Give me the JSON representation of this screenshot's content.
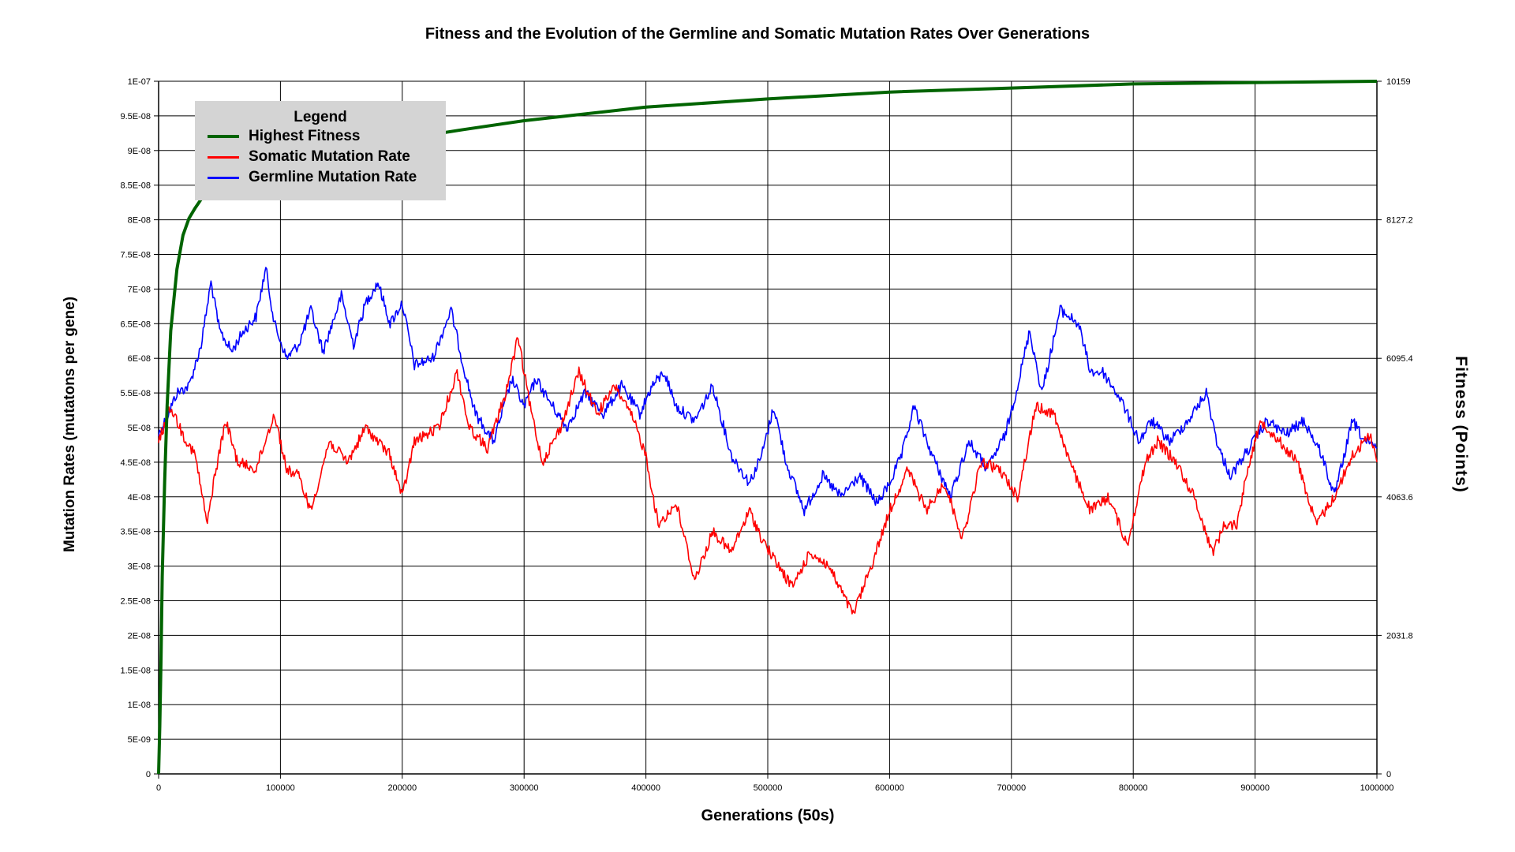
{
  "chart_data": {
    "type": "line",
    "title": "Fitness and the Evolution of the Germline and Somatic Mutation Rates Over Generations",
    "xlabel": "Generations (50s)",
    "ylabel_left": "Mutation Rates (mutatons per gene)",
    "ylabel_right": "Fitness (Points)",
    "xlim": [
      0,
      1000000
    ],
    "ylim_left": [
      0,
      1e-07
    ],
    "ylim_right": [
      0,
      10159
    ],
    "x_ticks": [
      "0",
      "100000",
      "200000",
      "300000",
      "400000",
      "500000",
      "600000",
      "700000",
      "800000",
      "900000",
      "1000000"
    ],
    "y_left_ticks": [
      "0",
      "5E-09",
      "1E-08",
      "1.5E-08",
      "2E-08",
      "2.5E-08",
      "3E-08",
      "3.5E-08",
      "4E-08",
      "4.5E-08",
      "5E-08",
      "5.5E-08",
      "6E-08",
      "6.5E-08",
      "7E-08",
      "7.5E-08",
      "8E-08",
      "8.5E-08",
      "9E-08",
      "9.5E-08",
      "1E-07"
    ],
    "y_right_ticks": [
      "0",
      "2031.8",
      "4063.6",
      "6095.4",
      "8127.2",
      "10159"
    ],
    "grid": true,
    "legend": {
      "title": "Legend",
      "position": "top-left"
    },
    "series": [
      {
        "name": "Highest Fitness",
        "axis": "right",
        "color": "#006400",
        "x": [
          0,
          1000,
          2000,
          3000,
          5000,
          7000,
          10000,
          15000,
          20000,
          25000,
          30000,
          35000,
          40000,
          50000,
          60000,
          80000,
          100000,
          150000,
          200000,
          250000,
          300000,
          400000,
          500000,
          600000,
          700000,
          800000,
          900000,
          1000000
        ],
        "y": [
          0,
          700,
          1700,
          2900,
          4300,
          5400,
          6500,
          7400,
          7900,
          8150,
          8300,
          8430,
          8500,
          8620,
          8720,
          8860,
          8950,
          9160,
          9310,
          9450,
          9580,
          9780,
          9900,
          10000,
          10060,
          10120,
          10140,
          10159
        ]
      },
      {
        "name": "Somatic Mutation Rate",
        "axis": "left",
        "color": "#ff0000",
        "x": [
          0,
          10000,
          20000,
          30000,
          40000,
          45000,
          55000,
          65000,
          80000,
          95000,
          105000,
          115000,
          125000,
          140000,
          155000,
          170000,
          190000,
          200000,
          210000,
          230000,
          245000,
          255000,
          270000,
          285000,
          295000,
          305000,
          315000,
          330000,
          345000,
          360000,
          375000,
          390000,
          400000,
          410000,
          425000,
          440000,
          455000,
          470000,
          485000,
          495000,
          505000,
          520000,
          535000,
          550000,
          570000,
          585000,
          600000,
          615000,
          630000,
          645000,
          660000,
          675000,
          690000,
          705000,
          720000,
          735000,
          750000,
          765000,
          780000,
          795000,
          810000,
          820000,
          835000,
          850000,
          865000,
          875000,
          885000,
          895000,
          905000,
          920000,
          935000,
          950000,
          965000,
          980000,
          995000,
          1000000
        ],
        "y": [
          4.8e-08,
          5.3e-08,
          4.9e-08,
          4.6e-08,
          3.6e-08,
          4.2e-08,
          5.1e-08,
          4.5e-08,
          4.4e-08,
          5.2e-08,
          4.4e-08,
          4.3e-08,
          3.8e-08,
          4.8e-08,
          4.5e-08,
          5e-08,
          4.6e-08,
          4e-08,
          4.8e-08,
          5e-08,
          5.8e-08,
          5e-08,
          4.7e-08,
          5.5e-08,
          6.3e-08,
          5.3e-08,
          4.5e-08,
          5e-08,
          5.8e-08,
          5.2e-08,
          5.6e-08,
          5.1e-08,
          4.6e-08,
          3.6e-08,
          3.9e-08,
          2.8e-08,
          3.5e-08,
          3.2e-08,
          3.8e-08,
          3.4e-08,
          3.1e-08,
          2.7e-08,
          3.2e-08,
          3e-08,
          2.3e-08,
          3e-08,
          3.8e-08,
          4.4e-08,
          3.8e-08,
          4.2e-08,
          3.4e-08,
          4.5e-08,
          4.4e-08,
          4e-08,
          5.3e-08,
          5.2e-08,
          4.4e-08,
          3.8e-08,
          4e-08,
          3.3e-08,
          4.5e-08,
          4.8e-08,
          4.5e-08,
          4e-08,
          3.2e-08,
          3.6e-08,
          3.6e-08,
          4.5e-08,
          5.1e-08,
          4.8e-08,
          4.5e-08,
          3.6e-08,
          4e-08,
          4.6e-08,
          4.9e-08,
          4.5e-08
        ]
      },
      {
        "name": "Germline Mutation Rate",
        "axis": "left",
        "color": "#0000ff",
        "x": [
          0,
          8000,
          15000,
          25000,
          35000,
          43000,
          50000,
          60000,
          70000,
          80000,
          88000,
          95000,
          105000,
          115000,
          125000,
          135000,
          150000,
          160000,
          170000,
          180000,
          190000,
          200000,
          210000,
          225000,
          240000,
          250000,
          260000,
          275000,
          290000,
          300000,
          310000,
          320000,
          335000,
          350000,
          365000,
          380000,
          395000,
          405000,
          415000,
          425000,
          440000,
          455000,
          470000,
          485000,
          495000,
          505000,
          515000,
          530000,
          545000,
          560000,
          575000,
          590000,
          600000,
          610000,
          620000,
          635000,
          650000,
          665000,
          680000,
          695000,
          705000,
          715000,
          725000,
          740000,
          755000,
          765000,
          775000,
          790000,
          805000,
          815000,
          830000,
          845000,
          860000,
          870000,
          880000,
          895000,
          910000,
          925000,
          940000,
          955000,
          965000,
          980000,
          990000,
          1000000
        ],
        "y": [
          4.9e-08,
          5.2e-08,
          5.5e-08,
          5.6e-08,
          6.2e-08,
          7.1e-08,
          6.4e-08,
          6.1e-08,
          6.4e-08,
          6.6e-08,
          7.3e-08,
          6.5e-08,
          6e-08,
          6.2e-08,
          6.7e-08,
          6.1e-08,
          6.9e-08,
          6.2e-08,
          6.8e-08,
          7.1e-08,
          6.5e-08,
          6.8e-08,
          5.9e-08,
          6e-08,
          6.7e-08,
          5.9e-08,
          5.2e-08,
          4.8e-08,
          5.7e-08,
          5.3e-08,
          5.7e-08,
          5.4e-08,
          5e-08,
          5.5e-08,
          5.2e-08,
          5.6e-08,
          5.2e-08,
          5.6e-08,
          5.8e-08,
          5.3e-08,
          5.1e-08,
          5.6e-08,
          4.6e-08,
          4.2e-08,
          4.6e-08,
          5.3e-08,
          4.5e-08,
          3.8e-08,
          4.3e-08,
          4e-08,
          4.3e-08,
          3.9e-08,
          4.2e-08,
          4.6e-08,
          5.3e-08,
          4.6e-08,
          4e-08,
          4.8e-08,
          4.4e-08,
          4.9e-08,
          5.6e-08,
          6.4e-08,
          5.5e-08,
          6.7e-08,
          6.5e-08,
          5.8e-08,
          5.8e-08,
          5.4e-08,
          4.8e-08,
          5.1e-08,
          4.8e-08,
          5.1e-08,
          5.5e-08,
          4.7e-08,
          4.3e-08,
          4.7e-08,
          5.1e-08,
          4.9e-08,
          5.1e-08,
          4.6e-08,
          4e-08,
          5.1e-08,
          4.8e-08,
          4.7e-08
        ]
      }
    ]
  }
}
